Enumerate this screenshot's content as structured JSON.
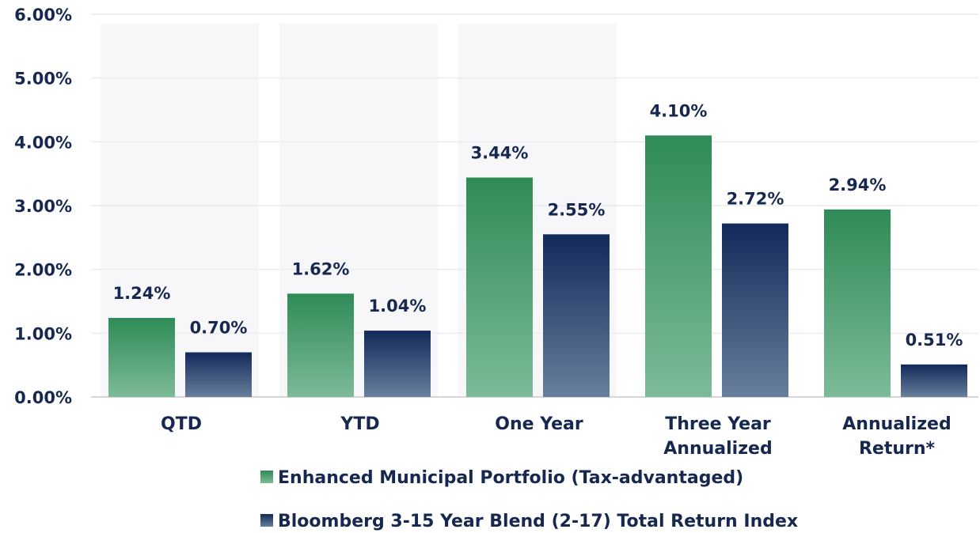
{
  "chart_data": {
    "type": "bar",
    "title": "",
    "xlabel": "",
    "ylabel": "",
    "ylim": [
      0,
      6
    ],
    "yticks": [
      0,
      1,
      2,
      3,
      4,
      5,
      6
    ],
    "ytick_labels": [
      "0.00%",
      "1.00%",
      "2.00%",
      "3.00%",
      "4.00%",
      "5.00%",
      "6.00%"
    ],
    "categories": [
      [
        "QTD"
      ],
      [
        "YTD"
      ],
      [
        "One Year"
      ],
      [
        "Three Year",
        "Annualized"
      ],
      [
        "Annualized",
        "Return*"
      ]
    ],
    "series": [
      {
        "name": "Enhanced Municipal Portfolio (Tax-advantaged)",
        "values": [
          1.24,
          1.62,
          3.44,
          4.1,
          2.94
        ],
        "labels": [
          "1.24%",
          "1.62%",
          "3.44%",
          "4.10%",
          "2.94%"
        ],
        "color_top": "#2e8b57",
        "color_bottom": "#7dbb98"
      },
      {
        "name": "Bloomberg 3-15 Year Blend (2-17) Total Return Index",
        "values": [
          0.7,
          1.04,
          2.55,
          2.72,
          0.51
        ],
        "labels": [
          "0.70%",
          "1.04%",
          "2.55%",
          "2.72%",
          "0.51%"
        ],
        "color_top": "#13295a",
        "color_bottom": "#677f9c"
      }
    ],
    "grid": true,
    "legend": "bottom"
  }
}
